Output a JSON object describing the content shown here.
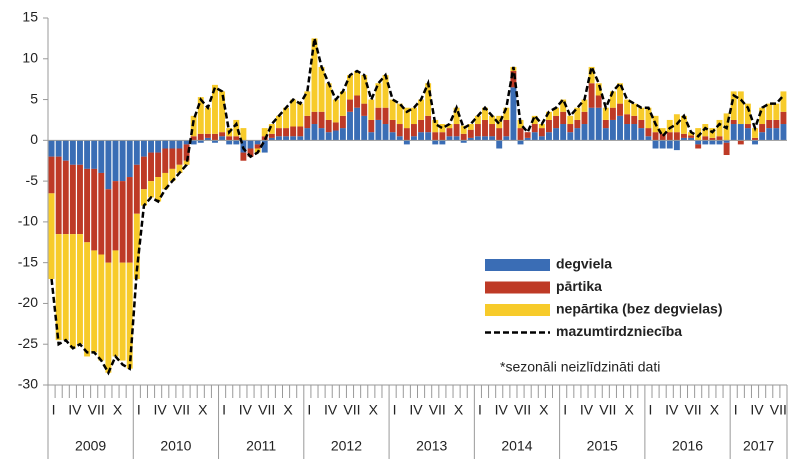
{
  "chart_data": {
    "type": "bar",
    "stacked": true,
    "categories": [
      "I",
      null,
      null,
      "IV",
      null,
      null,
      "VII",
      null,
      null,
      "X",
      null,
      null,
      "I",
      null,
      null,
      "IV",
      null,
      null,
      "VII",
      null,
      null,
      "X",
      null,
      null,
      "I",
      null,
      null,
      "IV",
      null,
      null,
      "VII",
      null,
      null,
      "X",
      null,
      null,
      "I",
      null,
      null,
      "IV",
      null,
      null,
      "VII",
      null,
      null,
      "X",
      null,
      null,
      "I",
      null,
      null,
      "IV",
      null,
      null,
      "VII",
      null,
      null,
      "X",
      null,
      null,
      "I",
      null,
      null,
      "IV",
      null,
      null,
      "VII",
      null,
      null,
      "X",
      null,
      null,
      "I",
      null,
      null,
      "IV",
      null,
      null,
      "VII",
      null,
      null,
      "X",
      null,
      null,
      "I",
      null,
      null,
      "IV",
      null,
      null,
      "VII",
      null,
      null,
      "X",
      null,
      null,
      "I",
      null,
      null,
      "IV",
      null,
      null,
      "VII",
      null
    ],
    "years": [
      "2009",
      "2010",
      "2011",
      "2012",
      "2013",
      "2014",
      "2015",
      "2016",
      "2017"
    ],
    "series": [
      {
        "name": "degviela",
        "color": "#3a6db5",
        "values": [
          -2,
          -2,
          -2.5,
          -3,
          -3,
          -3.5,
          -3.5,
          -4,
          -6,
          -5,
          -5,
          -4.5,
          -3,
          -2,
          -1.5,
          -1.5,
          -1,
          -1,
          -1,
          -0.5,
          -0.5,
          -0.3,
          0.3,
          -0.3,
          0.5,
          -0.5,
          -0.5,
          -1.5,
          -1,
          -0.5,
          -1.5,
          0.3,
          0.5,
          0.5,
          0.5,
          0.5,
          1.5,
          2,
          1.5,
          1,
          1.2,
          1.5,
          3.5,
          4,
          3,
          1,
          2.5,
          2,
          1,
          0.5,
          -0.5,
          0.5,
          1,
          1,
          -0.5,
          -0.5,
          0.5,
          0.5,
          -0.3,
          0.3,
          0.5,
          0.5,
          0.5,
          -1,
          0.5,
          6.5,
          -0.5,
          0.3,
          1,
          0.5,
          1,
          1.5,
          2,
          1,
          1.5,
          2,
          4,
          4,
          1.5,
          2.5,
          3,
          2,
          2,
          1.5,
          0.5,
          -1,
          -1,
          -1,
          -1.2,
          0.3,
          0.3,
          -0.5,
          -0.5,
          -0.5,
          -0.5,
          -0.3,
          2,
          2,
          1.5,
          -0.5,
          1,
          1.5,
          1.5,
          2
        ]
      },
      {
        "name": "pārtika",
        "color": "#be3a26",
        "values": [
          -4.5,
          -9.5,
          -9,
          -8.5,
          -8.5,
          -9,
          -10,
          -10,
          -9,
          -8.5,
          -10,
          -10.5,
          -6,
          -4,
          -3.5,
          -3,
          -3,
          -2.5,
          -2,
          -2,
          0.5,
          0.8,
          0.5,
          0.8,
          0.5,
          0.5,
          0.5,
          -1,
          -1,
          -0.5,
          0.5,
          0.5,
          1,
          1,
          1.2,
          1.2,
          1.5,
          1.5,
          2,
          1.5,
          1,
          1.5,
          1.5,
          1.5,
          1.5,
          1.5,
          1.5,
          2,
          1.5,
          1.5,
          1.5,
          1.5,
          1.5,
          2,
          1,
          1,
          1,
          1.5,
          0.8,
          1,
          1.5,
          2,
          1.5,
          1.5,
          2,
          2,
          1.5,
          0.7,
          1,
          1,
          1.5,
          1.5,
          1.5,
          1,
          1,
          1.5,
          3,
          1.5,
          1,
          1.5,
          1.5,
          1.2,
          1,
          1,
          1,
          1,
          0.8,
          1,
          1,
          0.5,
          0.3,
          -0.5,
          0.5,
          0.3,
          0.5,
          -1.5,
          0.5,
          -0.5,
          0.5,
          0.3,
          1,
          1,
          1,
          1.5
        ]
      },
      {
        "name": "nepārtika (bez degvielas)",
        "color": "#f7cb2a",
        "values": [
          -10.5,
          -13,
          -13,
          -14,
          -13.5,
          -14,
          -12.5,
          -13,
          -13.5,
          -13,
          -12,
          -13,
          -8,
          -2,
          -2,
          -3,
          -2,
          -1.5,
          -1,
          -0.5,
          2.5,
          4.5,
          3.2,
          6,
          5,
          1,
          2,
          1.5,
          0,
          -0.5,
          1,
          1.2,
          1.5,
          2.5,
          3.3,
          2.8,
          3,
          9,
          5.5,
          4.5,
          2.8,
          3,
          3,
          3,
          3.5,
          2.5,
          3,
          4,
          2.5,
          2.5,
          2.5,
          2,
          2.5,
          4,
          1.5,
          1,
          0.5,
          2,
          1,
          0.7,
          1,
          1.5,
          1,
          1.5,
          1.5,
          0.5,
          1,
          0,
          1,
          0.5,
          1,
          1,
          1.5,
          1,
          1.5,
          1.5,
          2,
          1.5,
          1.5,
          2,
          2.5,
          1.8,
          1.5,
          1.5,
          2.5,
          2,
          0.7,
          1.5,
          2.2,
          2.2,
          0.4,
          1.5,
          1.5,
          1.2,
          2,
          3.3,
          3.5,
          4,
          2.5,
          1.2,
          2,
          2,
          2,
          2.5
        ]
      },
      {
        "name": "mazumtirdzniecība",
        "type": "line",
        "color": "#000000",
        "values": [
          -17,
          -25,
          -24.5,
          -25.5,
          -25,
          -26,
          -26,
          -27,
          -28.5,
          -26.5,
          -27.5,
          -28,
          -16,
          -8,
          -7,
          -7.5,
          -6,
          -5,
          -4,
          -3,
          2.5,
          5,
          4,
          6.5,
          6,
          1,
          2,
          -1,
          -2,
          -1.5,
          0,
          2,
          3,
          4,
          5,
          4.5,
          6,
          12.5,
          9,
          7,
          5,
          6,
          8,
          8.5,
          8,
          5,
          7,
          8,
          5,
          4.5,
          3.5,
          4,
          5,
          7,
          2,
          1.5,
          2,
          4,
          1.5,
          2,
          3,
          4,
          3,
          2,
          4,
          9,
          2,
          1,
          3,
          2,
          3.5,
          4,
          5,
          3,
          4,
          5,
          9,
          7,
          4,
          6,
          7,
          5,
          4.5,
          4,
          4,
          2,
          0.5,
          1.5,
          2,
          3,
          1,
          0.5,
          1.5,
          1,
          2,
          1.5,
          5.5,
          5,
          4,
          1.5,
          4,
          4.5,
          4.5,
          5.5
        ]
      }
    ],
    "annotation": "*sezonāli neizlīdzināti dati",
    "ylim": [
      -30,
      15
    ],
    "yticks": [
      -30,
      -25,
      -20,
      -15,
      -10,
      -5,
      0,
      5,
      10,
      15
    ],
    "grid": false
  }
}
